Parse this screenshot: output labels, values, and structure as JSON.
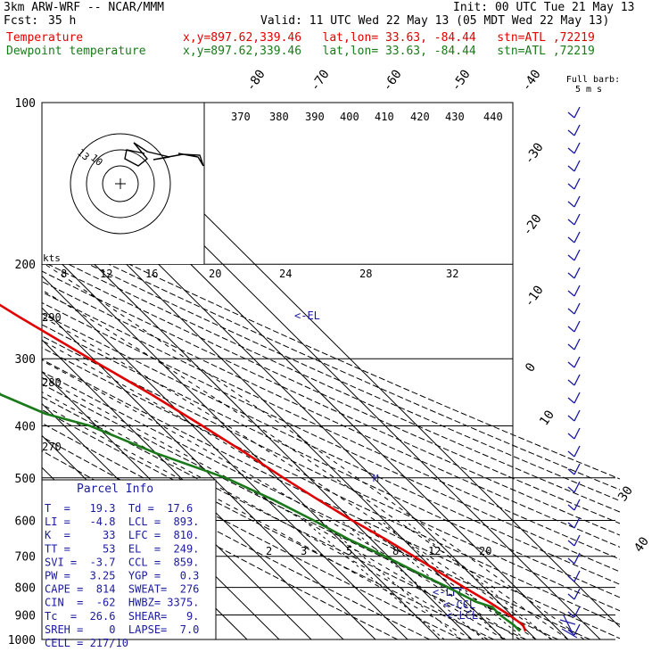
{
  "header": {
    "model": "3km ARW-WRF -- NCAR/MMM",
    "init": "Init: 00 UTC Tue 21 May 13",
    "fcst_label": "Fcst:",
    "fcst_value": "35 h",
    "valid": "Valid: 11 UTC Wed 22 May 13 (05 MDT Wed 22 May 13)",
    "temp_label": "Temperature",
    "dew_label": "Dewpoint temperature",
    "temp_info": "x,y=897.62,339.46   lat,lon= 33.63, -84.44   stn=ATL ,72219",
    "dew_info": "x,y=897.62,339.46   lat,lon= 33.63, -84.44   stn=ATL ,72219"
  },
  "colors": {
    "temperature": "#e00000",
    "dewpoint": "#1a7a1a",
    "barbs": "#1a1aa0",
    "grid": "#000000"
  },
  "pressure_labels": [
    "100",
    "200",
    "300",
    "400",
    "500",
    "600",
    "700",
    "800",
    "900",
    "1000"
  ],
  "isotherm_labels_top": [
    "-80",
    "-70",
    "-60",
    "-50",
    "-40"
  ],
  "isotherm_labels_right": [
    "-30",
    "-20",
    "-10",
    "0",
    "10",
    "30",
    "40"
  ],
  "theta_labels": [
    "370",
    "380",
    "390",
    "400",
    "410",
    "420",
    "430",
    "440"
  ],
  "adiabat_left_labels": [
    "290",
    "280",
    "270"
  ],
  "hodograph": {
    "kts_label": "kts",
    "speed_ticks": [
      "8",
      "12",
      "16",
      "20",
      "24",
      "28",
      "32"
    ],
    "ring_labels": [
      "13",
      "10"
    ]
  },
  "mixing_ratio_labels": [
    "2",
    "3",
    "5",
    "8",
    "12",
    "20"
  ],
  "levels": {
    "el": "<-EL",
    "lfc": "<-LFC",
    "ccl": "<-CCL",
    "lcl": "<-LCL",
    "m": "M"
  },
  "barb_title": "Full barb:",
  "barb_unit": "5 m s",
  "parcel": {
    "title": "Parcel Info",
    "rows": [
      "T  =   19.3  Td =  17.6",
      "LI =   -4.8  LCL =  893.",
      "K  =     33  LFC =  810.",
      "TT =     53  EL  =  249.",
      "SVI =  -3.7  CCL =  859.",
      "PW =   3.25  YGP =   0.3",
      "CAPE =  814  SWEAT=  276",
      "CIN  =  -62  HWBZ= 3375.",
      "Tc  =  26.6  SHEAR=   9.",
      "SREH =    0  LAPSE=  7.0",
      "CELL = 217/10"
    ]
  },
  "chart_data": {
    "type": "line",
    "title": "",
    "xlabel": "",
    "ylabel": "",
    "ylim": [
      1000,
      100
    ],
    "y_scale": "log",
    "series": [
      {
        "name": "Temperature",
        "color": "#e00000",
        "points": [
          [
            965,
            19.3
          ],
          [
            940,
            20.5
          ],
          [
            900,
            19.3
          ],
          [
            850,
            17
          ],
          [
            800,
            14
          ],
          [
            750,
            11
          ],
          [
            700,
            8
          ],
          [
            650,
            4.5
          ],
          [
            600,
            0
          ],
          [
            550,
            -4
          ],
          [
            500,
            -8
          ],
          [
            450,
            -12
          ],
          [
            400,
            -17
          ],
          [
            350,
            -23
          ],
          [
            300,
            -31
          ],
          [
            250,
            -40
          ],
          [
            200,
            -50
          ],
          [
            170,
            -58
          ],
          [
            150,
            -62
          ],
          [
            130,
            -65
          ],
          [
            115,
            -68
          ],
          [
            100,
            -70
          ]
        ]
      },
      {
        "name": "Dewpoint temperature",
        "color": "#1a7a1a",
        "points": [
          [
            965,
            17.6
          ],
          [
            940,
            17.6
          ],
          [
            900,
            16.5
          ],
          [
            870,
            16.5
          ],
          [
            850,
            13
          ],
          [
            800,
            9
          ],
          [
            750,
            4
          ],
          [
            700,
            -1
          ],
          [
            650,
            -7
          ],
          [
            600,
            -12
          ],
          [
            550,
            -18
          ],
          [
            500,
            -26
          ],
          [
            450,
            -40
          ],
          [
            400,
            -52
          ],
          [
            380,
            -62
          ],
          [
            350,
            -70
          ],
          [
            300,
            -72
          ],
          [
            250,
            -76
          ],
          [
            200,
            -80
          ],
          [
            150,
            -83
          ],
          [
            120,
            -84
          ],
          [
            100,
            -85
          ]
        ]
      }
    ]
  }
}
